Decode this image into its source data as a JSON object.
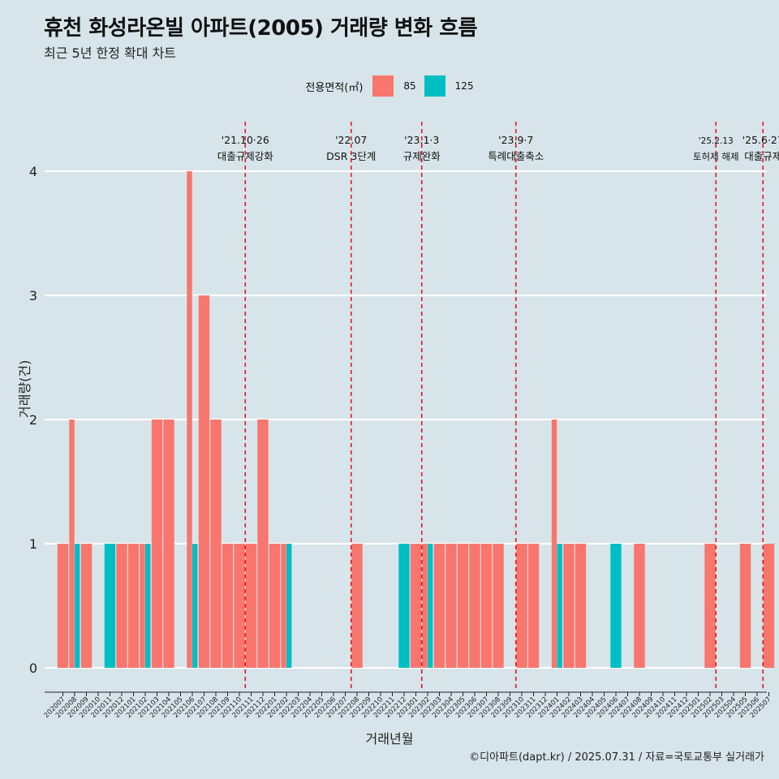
{
  "title": "휴천 화성라온빌 아파트(2005) 거래량 변화 흐름",
  "subtitle": "최근 5년 한정 확대 차트",
  "caption": "©디아파트(dapt.kr) / 2025.07.31 / 자료=국토교통부 실거래가",
  "colors": {
    "85": "#f8766d",
    "125": "#00bfc4",
    "background": "#d7e4ea",
    "vline": "#e41a1c"
  },
  "chart_data": {
    "type": "bar",
    "xlabel": "거래년월",
    "ylabel": "거래량(건)",
    "ylim": [
      0,
      4
    ],
    "yticks": [
      0,
      1,
      2,
      3,
      4
    ],
    "legend": {
      "title": "전용면적(㎡)",
      "position": "top"
    },
    "categories": [
      "202007",
      "202008",
      "202009",
      "202010",
      "202011",
      "202012",
      "202101",
      "202102",
      "202103",
      "202104",
      "202105",
      "202106",
      "202107",
      "202108",
      "202109",
      "202110",
      "202111",
      "202112",
      "202201",
      "202202",
      "202203",
      "202204",
      "202205",
      "202206",
      "202207",
      "202208",
      "202209",
      "202210",
      "202211",
      "202212",
      "202301",
      "202302",
      "202303",
      "202304",
      "202305",
      "202306",
      "202307",
      "202308",
      "202309",
      "202310",
      "202311",
      "202312",
      "202401",
      "202402",
      "202403",
      "202404",
      "202405",
      "202406",
      "202407",
      "202408",
      "202409",
      "202410",
      "202411",
      "202412",
      "202501",
      "202502",
      "202503",
      "202504",
      "202505",
      "202506",
      "202507"
    ],
    "series": [
      {
        "name": "85",
        "values": [
          1,
          2,
          1,
          0,
          0,
          1,
          1,
          1,
          2,
          2,
          0,
          4,
          3,
          2,
          1,
          1,
          1,
          2,
          1,
          1,
          0,
          0,
          0,
          0,
          0,
          1,
          0,
          0,
          0,
          0,
          1,
          1,
          1,
          1,
          1,
          1,
          1,
          1,
          0,
          1,
          1,
          0,
          2,
          1,
          1,
          0,
          0,
          0,
          0,
          1,
          0,
          0,
          0,
          0,
          0,
          1,
          0,
          0,
          1,
          0,
          1
        ]
      },
      {
        "name": "125",
        "values": [
          0,
          1,
          0,
          0,
          1,
          0,
          0,
          1,
          0,
          0,
          0,
          1,
          0,
          0,
          0,
          0,
          0,
          0,
          0,
          1,
          0,
          0,
          0,
          0,
          0,
          0,
          0,
          0,
          0,
          1,
          0,
          1,
          0,
          0,
          0,
          0,
          0,
          0,
          0,
          0,
          0,
          0,
          1,
          0,
          0,
          0,
          0,
          1,
          0,
          0,
          0,
          0,
          0,
          0,
          0,
          0,
          0,
          0,
          0,
          0,
          0
        ]
      }
    ],
    "annotations": [
      {
        "x": "202110",
        "date": "'21.10·26",
        "label": "대출규제강화"
      },
      {
        "x": "202207",
        "date": "'22.07",
        "label": "DSR 3단계"
      },
      {
        "x": "202301",
        "date": "'23.1·3",
        "label": "규제완화"
      },
      {
        "x": "202309",
        "date": "'23.9·7",
        "label": "특례대출축소"
      },
      {
        "x": "202502",
        "date": "'25.2.13",
        "label": "토허제 해제"
      },
      {
        "x": "202506",
        "date": "'25.6·27",
        "label": "대출규제"
      }
    ]
  }
}
